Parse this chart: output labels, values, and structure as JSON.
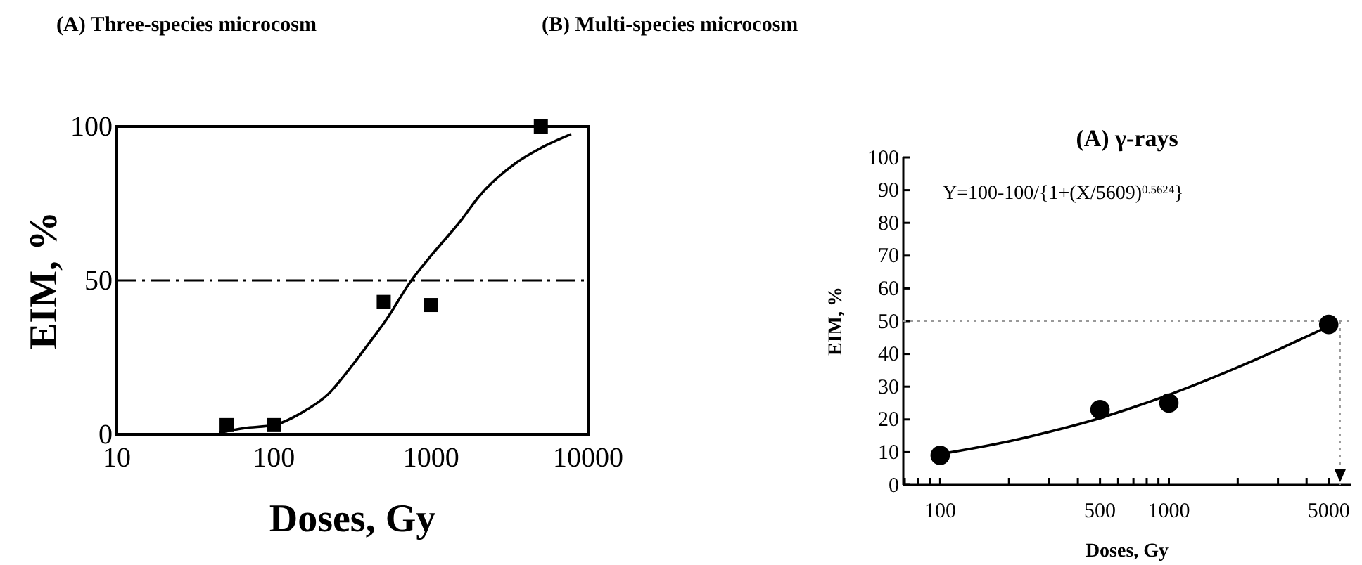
{
  "chart_data": [
    {
      "type": "scatter",
      "title": "(A) Three-species microcosm",
      "xlabel": "Doses, Gy",
      "ylabel": "EIM, %",
      "log": "x",
      "xlim": [
        10,
        10000
      ],
      "xticks": [
        10,
        100,
        1000,
        10000
      ],
      "ylim": [
        0,
        100
      ],
      "yticks": [
        0,
        50,
        100
      ],
      "grid": false,
      "ref_lines": [
        {
          "axis": "y",
          "value": 50,
          "line_style": "dashdot",
          "color": "#000000"
        }
      ],
      "series": [
        {
          "marker": "square",
          "color": "#000000",
          "x": [
            50,
            100,
            500,
            1000,
            5000
          ],
          "values": [
            3,
            3,
            43,
            42,
            100
          ]
        },
        {
          "type": "line",
          "marker": "none",
          "line_style": "solid",
          "color": "#000000",
          "x": [
            45,
            65,
            100,
            150,
            221,
            300,
            437,
            500,
            750,
            1000,
            1580,
            2000,
            3440,
            5000,
            7800
          ],
          "values": [
            0.5,
            2,
            3,
            7,
            13,
            21,
            32,
            36,
            50,
            58,
            70,
            77,
            88,
            93,
            97.5
          ]
        }
      ]
    },
    {
      "type": "scatter",
      "title": "(B) Multi-species microcosm",
      "subtitle": "(A) γ-rays",
      "xlabel": "Doses, Gy",
      "ylabel": "EIM, %",
      "log": "x",
      "xlim": [
        69,
        6240
      ],
      "xticks": [
        {
          "value": 70,
          "label": null
        },
        {
          "value": 80,
          "label": null
        },
        {
          "value": 90,
          "label": null
        },
        100,
        {
          "value": 200,
          "label": null
        },
        {
          "value": 300,
          "label": null
        },
        {
          "value": 400,
          "label": null
        },
        500,
        {
          "value": 600,
          "label": null
        },
        {
          "value": 700,
          "label": null
        },
        {
          "value": 800,
          "label": null
        },
        {
          "value": 900,
          "label": null
        },
        1000,
        {
          "value": 2000,
          "label": null
        },
        {
          "value": 3000,
          "label": null
        },
        {
          "value": 4000,
          "label": null
        },
        5000
      ],
      "ylim": [
        0,
        100
      ],
      "yticks": [
        0,
        10,
        20,
        30,
        40,
        50,
        60,
        70,
        80,
        90,
        100
      ],
      "grid": false,
      "annotations": [
        "Y=100-100/{1+(X/5609)$^{0.5624}$}"
      ],
      "ref_lines": [
        {
          "axis": "y",
          "value": 50,
          "line_style": "dotted",
          "color": "#999999"
        },
        {
          "axis": "x",
          "value": 5609,
          "line_style": "dotted",
          "color": "#999999"
        }
      ],
      "series": [
        {
          "marker": "circle",
          "color": "#000000",
          "x": [
            100,
            500,
            1000,
            5000
          ],
          "values": [
            9,
            23,
            25,
            49
          ]
        },
        {
          "type": "line",
          "marker": "none",
          "line_style": "solid",
          "color": "#000000",
          "x": [
            100,
            200,
            300,
            500,
            700,
            1000,
            2000,
            3000,
            4000,
            5000
          ],
          "values": [
            9.4,
            13.3,
            16.2,
            20.4,
            23.7,
            27.5,
            35.9,
            41.3,
            45.3,
            48.4
          ]
        }
      ]
    }
  ]
}
